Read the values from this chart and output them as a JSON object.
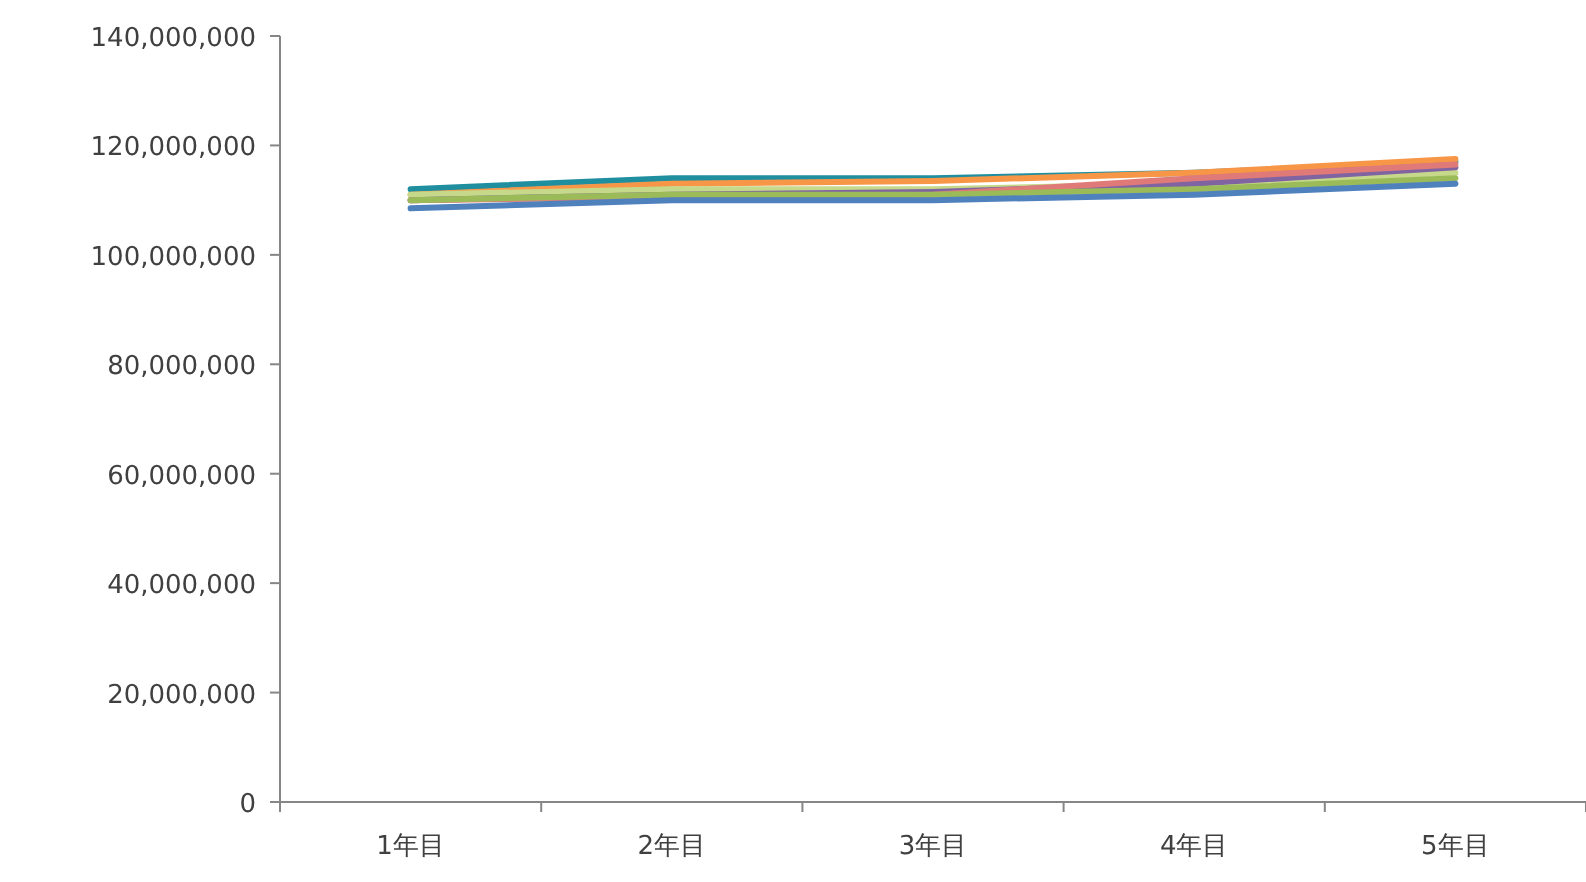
{
  "chart_data": {
    "type": "line",
    "categories": [
      "1年目",
      "2年目",
      "3年目",
      "4年目",
      "5年目"
    ],
    "series": [
      {
        "color": "#1f8fa0",
        "values": [
          112000000,
          114000000,
          114000000,
          115000000,
          117000000
        ]
      },
      {
        "color": "#f79646",
        "values": [
          111000000,
          113000000,
          113500000,
          115000000,
          117500000
        ]
      },
      {
        "color": "#c6d98a",
        "values": [
          111000000,
          112000000,
          112000000,
          113000000,
          115000000
        ]
      },
      {
        "color": "#8064a2",
        "values": [
          110000000,
          111000000,
          111500000,
          113000000,
          116000000
        ]
      },
      {
        "color": "#e07a78",
        "values": [
          110000000,
          110500000,
          111000000,
          114000000,
          116500000
        ]
      },
      {
        "color": "#9bbb59",
        "values": [
          110000000,
          111000000,
          111000000,
          112000000,
          114000000
        ]
      },
      {
        "color": "#4f81bd",
        "values": [
          108500000,
          110000000,
          110000000,
          111000000,
          113000000
        ]
      }
    ],
    "ylim": [
      0,
      140000000
    ],
    "yticks": [
      {
        "value": 0,
        "label": "0"
      },
      {
        "value": 20000000,
        "label": "20,000,000"
      },
      {
        "value": 40000000,
        "label": "40,000,000"
      },
      {
        "value": 60000000,
        "label": "60,000,000"
      },
      {
        "value": 80000000,
        "label": "80,000,000"
      },
      {
        "value": 100000000,
        "label": "100,000,000"
      },
      {
        "value": 120000000,
        "label": "120,000,000"
      },
      {
        "value": 140000000,
        "label": "140,000,000"
      }
    ],
    "grid": false
  }
}
